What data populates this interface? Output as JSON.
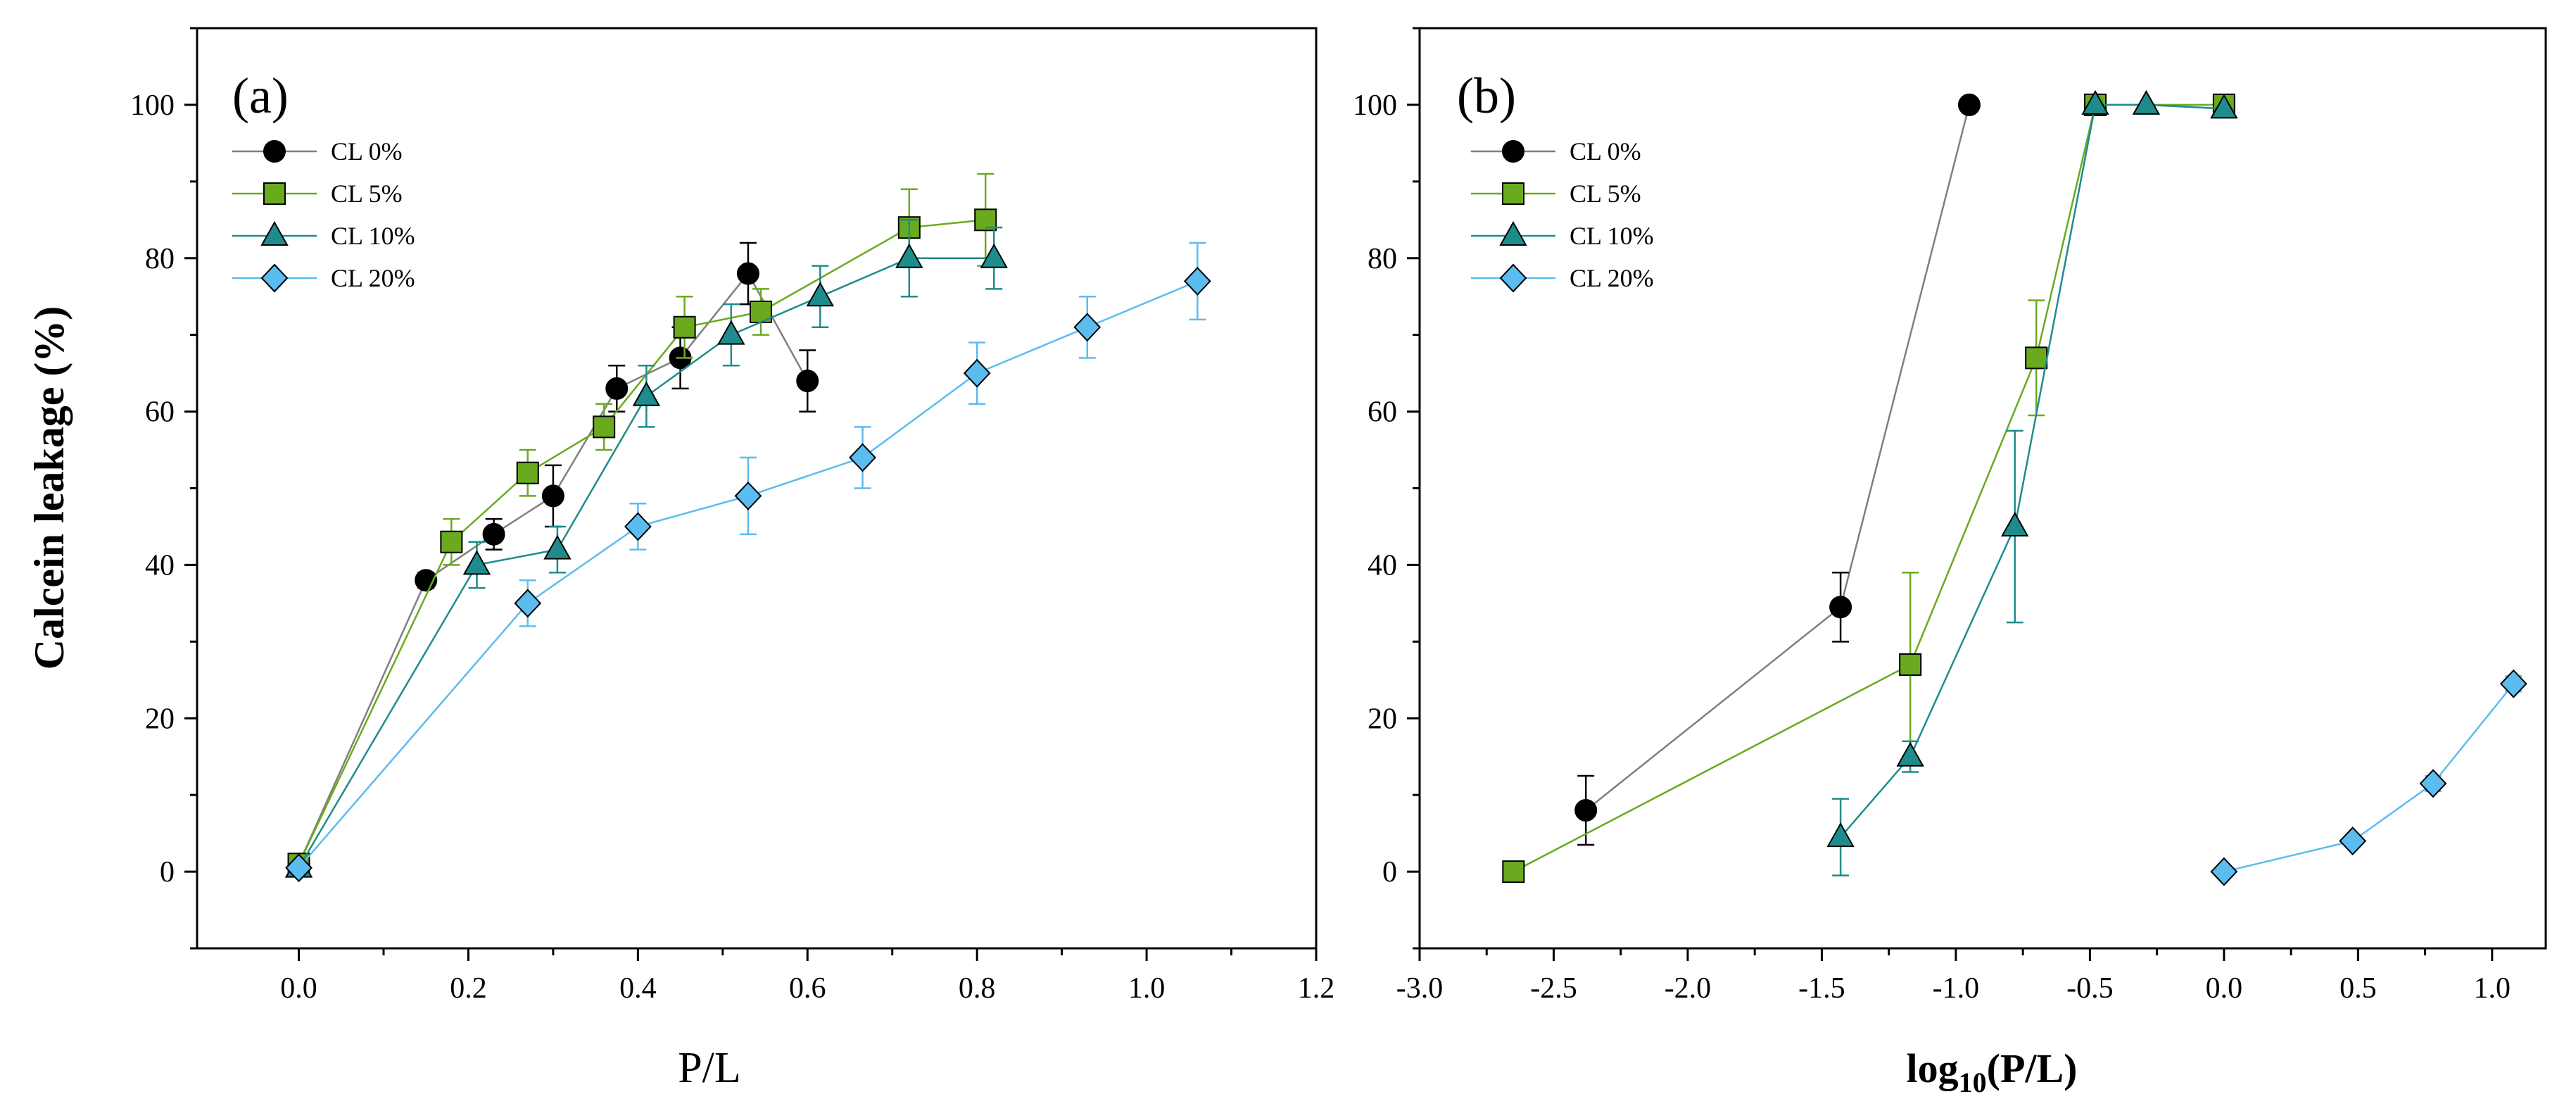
{
  "colors": {
    "CL 0%": {
      "marker": "#000000",
      "line": "#7f7f7f",
      "error": "#000000"
    },
    "CL 5%": {
      "marker": "#6aaa1e",
      "line": "#6aaa1e",
      "error": "#6aaa1e"
    },
    "CL 10%": {
      "marker": "#1e8c8c",
      "line": "#1e8c8c",
      "error": "#1e8c8c"
    },
    "CL 20%": {
      "marker": "#5bbcf0",
      "line": "#5bbcf0",
      "error": "#5bbcf0"
    }
  },
  "chart_data": [
    {
      "type": "scatter",
      "panel_label": "(a)",
      "xlabel": "P/L",
      "ylabel": "Calcein leakage (%)",
      "xlim": [
        -0.12,
        1.2
      ],
      "ylim": [
        -10,
        110
      ],
      "xticks": [
        0.0,
        0.2,
        0.4,
        0.6,
        0.8,
        1.0,
        1.2
      ],
      "xtick_labels": [
        "0.0",
        "0.2",
        "0.4",
        "0.6",
        "0.8",
        "1.0",
        "1.2"
      ],
      "yticks": [
        0,
        20,
        40,
        60,
        80,
        100
      ],
      "ytick_labels": [
        "0",
        "20",
        "40",
        "60",
        "80",
        "100"
      ],
      "legend_position": "top-left",
      "series": [
        {
          "name": "CL 0%",
          "marker": "circle",
          "x": [
            0.0,
            0.15,
            0.23,
            0.3,
            0.375,
            0.45,
            0.53,
            0.6
          ],
          "y": [
            1,
            38,
            44,
            49,
            63,
            67,
            78,
            64
          ],
          "err": [
            0,
            1,
            2,
            4,
            3,
            4,
            4,
            4
          ]
        },
        {
          "name": "CL 5%",
          "marker": "square",
          "x": [
            0.0,
            0.18,
            0.27,
            0.36,
            0.455,
            0.545,
            0.72,
            0.81
          ],
          "y": [
            1,
            43,
            52,
            58,
            71,
            73,
            84,
            85
          ],
          "err": [
            0,
            3,
            3,
            3,
            4,
            3,
            5,
            6
          ]
        },
        {
          "name": "CL 10%",
          "marker": "triangle",
          "x": [
            0.0,
            0.21,
            0.305,
            0.41,
            0.51,
            0.615,
            0.72,
            0.82
          ],
          "y": [
            0.5,
            40,
            42,
            62,
            70,
            75,
            80,
            80
          ],
          "err": [
            0,
            3,
            3,
            4,
            4,
            4,
            5,
            4
          ]
        },
        {
          "name": "CL 20%",
          "marker": "diamond",
          "x": [
            0.0,
            0.27,
            0.4,
            0.53,
            0.665,
            0.8,
            0.93,
            1.06
          ],
          "y": [
            0.5,
            35,
            45,
            49,
            54,
            65,
            71,
            77
          ],
          "err": [
            0,
            3,
            3,
            5,
            4,
            4,
            4,
            5
          ]
        }
      ]
    },
    {
      "type": "scatter",
      "panel_label": "(b)",
      "xlabel_main": "log",
      "xlabel_sub": "10",
      "xlabel_rest": "(P/L)",
      "ylabel": "",
      "xlim": [
        -3.0,
        1.2
      ],
      "ylim": [
        -10,
        110
      ],
      "xticks": [
        -3.0,
        -2.5,
        -2.0,
        -1.5,
        -1.0,
        -0.5,
        0.0,
        0.5,
        1.0
      ],
      "xtick_labels": [
        "-3.0",
        "-2.5",
        "-2.0",
        "-1.5",
        "-1.0",
        "-0.5",
        "0.0",
        "0.5",
        "1.0"
      ],
      "yticks": [
        0,
        20,
        40,
        60,
        80,
        100
      ],
      "ytick_labels": [
        "0",
        "20",
        "40",
        "60",
        "80",
        "100"
      ],
      "legend_position": "top-left",
      "series": [
        {
          "name": "CL 0%",
          "marker": "circle",
          "x": [
            -2.38,
            -1.43,
            -0.95
          ],
          "y": [
            8,
            34.5,
            100
          ],
          "err": [
            4.5,
            4.5,
            0
          ]
        },
        {
          "name": "CL 5%",
          "marker": "square",
          "x": [
            -2.65,
            -1.17,
            -0.7,
            -0.48,
            0.0
          ],
          "y": [
            0,
            27,
            67,
            100,
            100
          ],
          "err": [
            0,
            12,
            7.5,
            0,
            0
          ]
        },
        {
          "name": "CL 10%",
          "marker": "triangle",
          "x": [
            -1.43,
            -1.17,
            -0.78,
            -0.48,
            -0.29,
            0.0
          ],
          "y": [
            4.5,
            15,
            45,
            100,
            100,
            99.5
          ],
          "err": [
            5,
            2,
            12.5,
            0,
            0,
            0
          ]
        },
        {
          "name": "CL 20%",
          "marker": "diamond",
          "x": [
            0.0,
            0.48,
            0.78,
            1.08
          ],
          "y": [
            0,
            4,
            11.5,
            24.5
          ],
          "err": [
            0,
            0,
            1,
            1
          ]
        }
      ]
    }
  ]
}
